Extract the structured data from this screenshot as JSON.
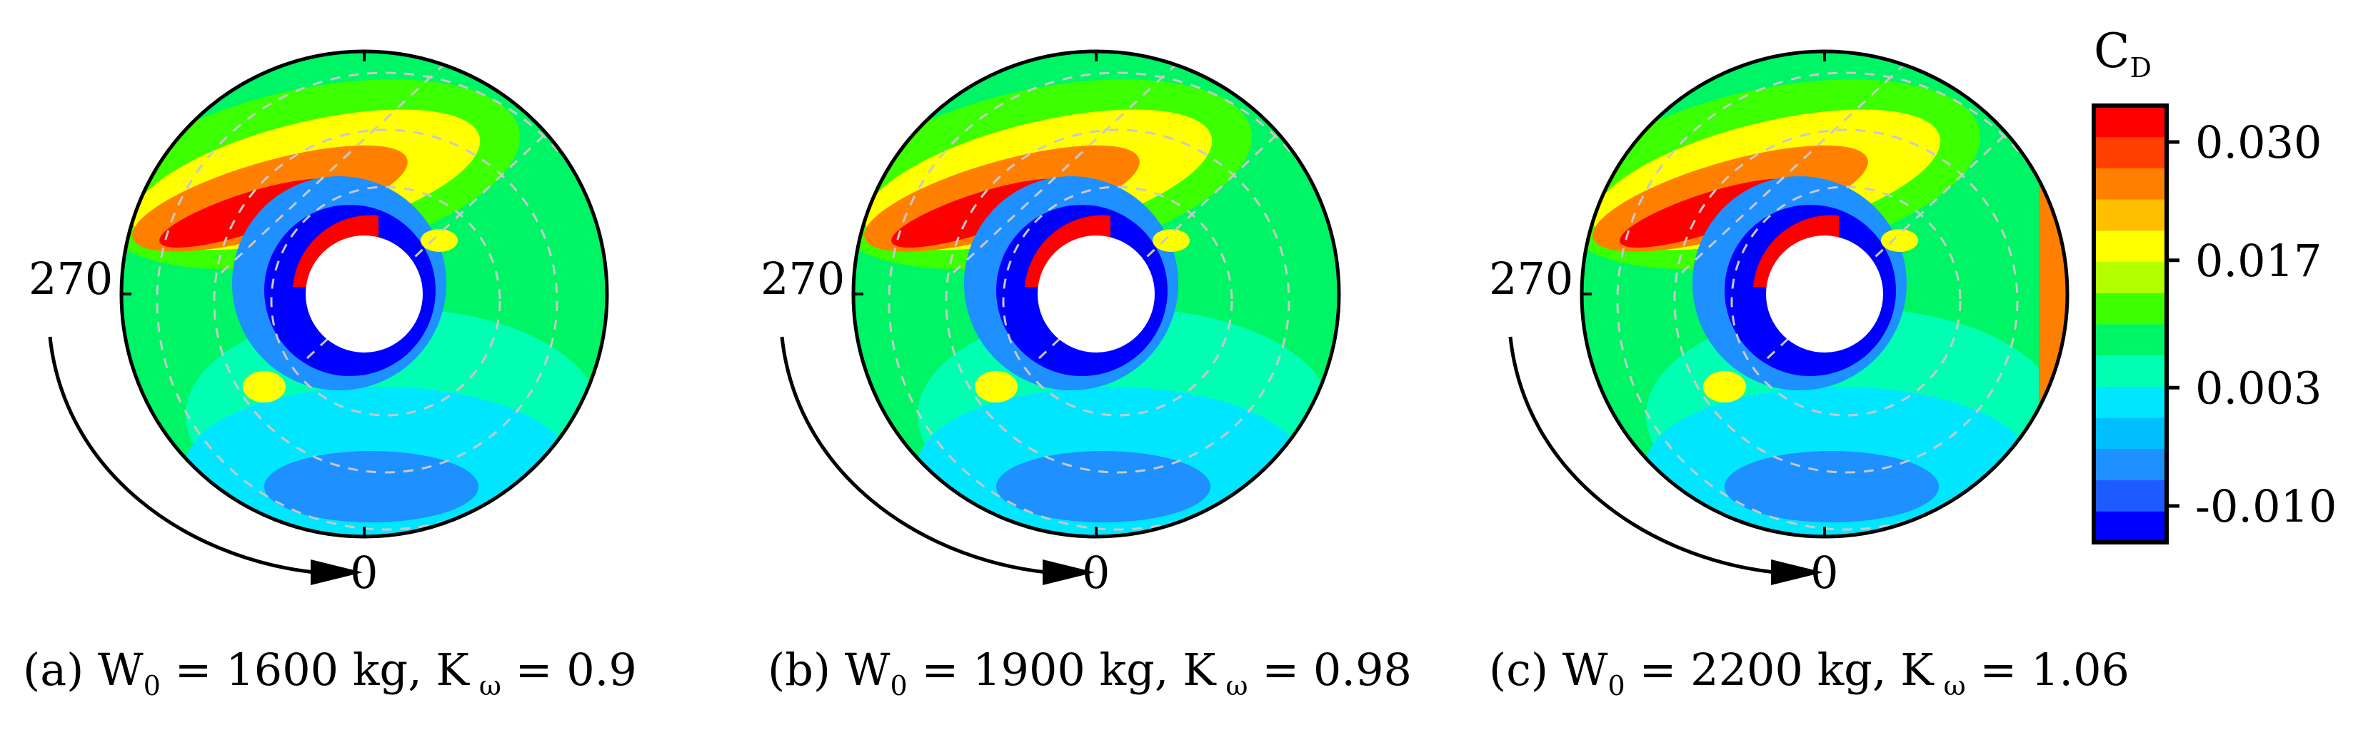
{
  "chart_data": {
    "type": "heatmap",
    "panels": [
      {
        "id": "a",
        "caption_prefix": "(a) W",
        "w_sub": "0",
        "w_rest": " = 1600 kg, K",
        "k_sub": "ω",
        "k_rest": " = 0.9",
        "W0_kg": 1600,
        "K_omega": 0.9,
        "angle_label_left": "270",
        "angle_label_bottom": "0"
      },
      {
        "id": "b",
        "caption_prefix": "(b) W",
        "w_sub": "0",
        "w_rest": " = 1900 kg, K",
        "k_sub": "ω",
        "k_rest": " = 0.98",
        "W0_kg": 1900,
        "K_omega": 0.98,
        "angle_label_left": "270",
        "angle_label_bottom": "0"
      },
      {
        "id": "c",
        "caption_prefix": "(c) W",
        "w_sub": "0",
        "w_rest": " = 2200 kg, K",
        "k_sub": "ω",
        "k_rest": " = 1.06",
        "W0_kg": 2200,
        "K_omega": 1.06,
        "angle_label_left": "270",
        "angle_label_bottom": "0"
      }
    ],
    "colorbar": {
      "title": "C",
      "title_sub": "D",
      "range": [
        -0.014,
        0.034
      ],
      "ticks": [
        {
          "value": 0.03,
          "label": "0.030"
        },
        {
          "value": 0.017,
          "label": "0.017"
        },
        {
          "value": 0.003,
          "label": "0.003"
        },
        {
          "value": -0.01,
          "label": "-0.010"
        }
      ],
      "levels": [
        "#0000ff",
        "#1e5bff",
        "#1e90ff",
        "#00bfff",
        "#00e6ff",
        "#00ffb3",
        "#00f566",
        "#3cff00",
        "#b3ff00",
        "#ffff00",
        "#ffbf00",
        "#ff8000",
        "#ff4000",
        "#ff0000"
      ]
    },
    "colors": {
      "blue": "#0000ff",
      "mid_blue": "#1e90ff",
      "cyan": "#00e6ff",
      "aqua": "#00ffb3",
      "green": "#00f566",
      "lime": "#3cff00",
      "yellow": "#ffff00",
      "orange": "#ff8000",
      "red": "#ff0000",
      "grid": "#c8c8c8"
    }
  }
}
